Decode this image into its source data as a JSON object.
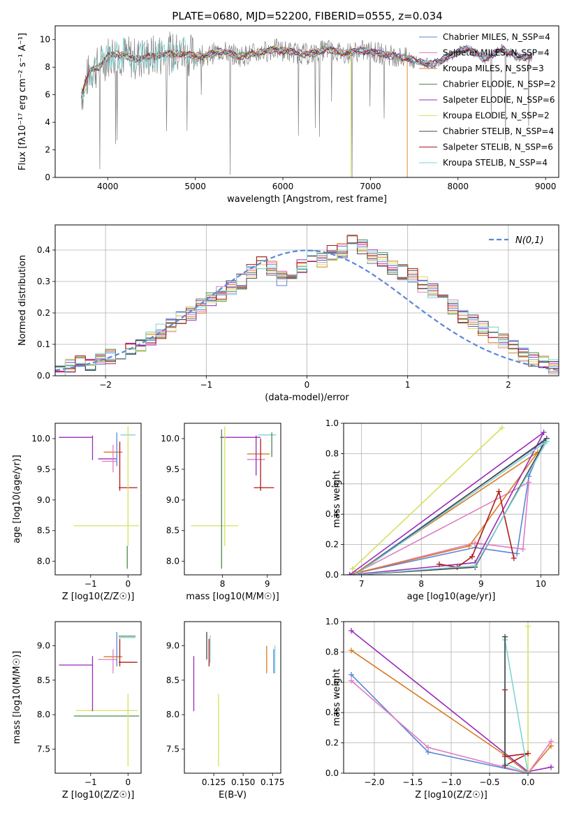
{
  "figure_title": "PLATE=0680, MJD=52200, FIBERID=0555, z=0.034",
  "series_colors": {
    "Chabrier MILES": "#5b86d8",
    "Salpeter MILES": "#e07cc0",
    "Kroupa MILES": "#d97a22",
    "Chabrier ELODIE": "#4a8a4a",
    "Salpeter ELODIE": "#9a2ab8",
    "Kroupa ELODIE": "#d8e060",
    "Chabrier STELIB": "#444444",
    "Salpeter STELIB": "#b01818",
    "Kroupa STELIB": "#7fd4d4"
  },
  "chart_data": [
    {
      "type": "line",
      "title": "PLATE=0680, MJD=52200, FIBERID=0555, z=0.034",
      "xlabel": "wavelength [Angstrom, rest frame]",
      "ylabel": "Flux [fλ10⁻¹⁷ erg cm⁻² s⁻¹ A⁻¹]",
      "xlim": [
        3400,
        9150
      ],
      "ylim": [
        0,
        11
      ],
      "xticks": [
        4000,
        5000,
        6000,
        7000,
        8000,
        9000
      ],
      "yticks": [
        0,
        2,
        4,
        6,
        8,
        10
      ],
      "legend_position": "right",
      "legend": [
        "Chabrier MILES, N_SSP=4",
        "Salpeter MILES, N_SSP=4",
        "Kroupa MILES, N_SSP=3",
        "Chabrier ELODIE, N_SSP=2",
        "Salpeter ELODIE, N_SSP=6",
        "Kroupa ELODIE, N_SSP=2",
        "Chabrier STELIB, N_SSP=4",
        "Salpeter STELIB, N_SSP=6",
        "Kroupa STELIB, N_SSP=4"
      ],
      "continuum": {
        "x": [
          3700,
          3800,
          3900,
          4000,
          4100,
          4300,
          4500,
          4700,
          4900,
          5100,
          5300,
          5500,
          5700,
          5900,
          6100,
          6300,
          6500,
          6700,
          6900,
          7100,
          7300,
          7500,
          7700,
          7900,
          8100,
          8300,
          8500,
          8700,
          8850
        ],
        "y": [
          6.0,
          7.8,
          8.0,
          8.8,
          9.0,
          8.6,
          8.8,
          9.0,
          8.9,
          8.8,
          9.2,
          8.8,
          9.0,
          9.3,
          9.1,
          8.9,
          9.3,
          9.0,
          9.2,
          9.0,
          8.8,
          8.5,
          8.2,
          8.8,
          9.4,
          8.6,
          9.3,
          8.7,
          8.8
        ]
      },
      "model_drop_x": [
        3910,
        6780,
        7420
      ]
    },
    {
      "type": "histogram",
      "xlabel": "(data-model)/error",
      "ylabel": "Normed distribution",
      "xlim": [
        -2.5,
        2.5
      ],
      "ylim": [
        0,
        0.48
      ],
      "xticks": [
        -2,
        -1,
        0,
        1,
        2
      ],
      "yticks": [
        0.0,
        0.1,
        0.2,
        0.3,
        0.4
      ],
      "grid": true,
      "legend_position": "top-right",
      "reference_curve": "N(0,1)",
      "bin_edges_start": -2.5,
      "bin_width": 0.1,
      "bin_values": [
        0.02,
        0.03,
        0.04,
        0.04,
        0.05,
        0.06,
        0.07,
        0.08,
        0.1,
        0.12,
        0.14,
        0.16,
        0.18,
        0.2,
        0.22,
        0.24,
        0.26,
        0.28,
        0.3,
        0.33,
        0.36,
        0.34,
        0.31,
        0.33,
        0.35,
        0.38,
        0.37,
        0.39,
        0.4,
        0.43,
        0.41,
        0.38,
        0.37,
        0.34,
        0.33,
        0.32,
        0.29,
        0.27,
        0.24,
        0.22,
        0.19,
        0.17,
        0.15,
        0.13,
        0.11,
        0.09,
        0.07,
        0.05,
        0.04,
        0.03
      ]
    },
    {
      "type": "scatter",
      "name": "Z vs age",
      "xlabel": "Z [log10(Z/Z☉)]",
      "ylabel": "age [log10(age/yr)]",
      "xlim": [
        -1.95,
        0.35
      ],
      "ylim": [
        7.78,
        10.25
      ],
      "xticks": [
        -1,
        0
      ],
      "yticks": [
        8.0,
        8.5,
        9.0,
        9.5,
        10.0
      ],
      "hlines": [
        {
          "y": 10.02,
          "x1": -1.85,
          "x2": -0.95,
          "color": "#9a2ab8"
        },
        {
          "y": 10.06,
          "x1": -0.2,
          "x2": 0.2,
          "color": "#7fd4d4"
        },
        {
          "y": 9.78,
          "x1": -0.65,
          "x2": -0.15,
          "color": "#d97a22"
        },
        {
          "y": 9.67,
          "x1": -0.8,
          "x2": -0.3,
          "color": "#9a2ab8"
        },
        {
          "y": 9.63,
          "x1": -0.7,
          "x2": -0.3,
          "color": "#e07cc0"
        },
        {
          "y": 9.2,
          "x1": -0.25,
          "x2": 0.25,
          "color": "#b01818"
        },
        {
          "y": 8.58,
          "x1": -1.45,
          "x2": 0.3,
          "color": "#d8e060"
        }
      ],
      "vlines": [
        {
          "x": -0.95,
          "y1": 9.65,
          "y2": 10.05,
          "color": "#9a2ab8"
        },
        {
          "x": -0.4,
          "y1": 9.45,
          "y2": 9.9,
          "color": "#e07cc0"
        },
        {
          "x": -0.3,
          "y1": 9.55,
          "y2": 10.1,
          "color": "#5b86d8"
        },
        {
          "x": -0.22,
          "y1": 9.15,
          "y2": 9.95,
          "color": "#b01818"
        },
        {
          "x": 0.0,
          "y1": 8.25,
          "y2": 10.2,
          "color": "#d8e060"
        },
        {
          "x": -0.02,
          "y1": 7.88,
          "y2": 8.25,
          "color": "#4a8a4a"
        }
      ]
    },
    {
      "type": "scatter",
      "name": "mass vs age",
      "xlabel": "mass [log10(M/M☉)]",
      "ylabel": "",
      "xlim": [
        7.15,
        9.3
      ],
      "ylim": [
        7.78,
        10.25
      ],
      "xticks": [
        8,
        9
      ],
      "yticks": [
        8.0,
        8.5,
        9.0,
        9.5,
        10.0
      ],
      "hlines": [
        {
          "y": 10.02,
          "x1": 7.95,
          "x2": 8.85,
          "color": "#9a2ab8"
        },
        {
          "y": 10.06,
          "x1": 8.8,
          "x2": 9.2,
          "color": "#7fd4d4"
        },
        {
          "y": 9.75,
          "x1": 8.55,
          "x2": 9.05,
          "color": "#d97a22"
        },
        {
          "y": 9.66,
          "x1": 8.55,
          "x2": 8.95,
          "color": "#e07cc0"
        },
        {
          "y": 9.2,
          "x1": 8.7,
          "x2": 9.15,
          "color": "#b01818"
        },
        {
          "y": 8.58,
          "x1": 7.3,
          "x2": 8.35,
          "color": "#d8e060"
        }
      ],
      "vlines": [
        {
          "x": 7.98,
          "y1": 7.88,
          "y2": 10.15,
          "color": "#4a8a4a"
        },
        {
          "x": 8.05,
          "y1": 8.25,
          "y2": 10.2,
          "color": "#d8e060"
        },
        {
          "x": 8.75,
          "y1": 9.4,
          "y2": 10.05,
          "color": "#9a2ab8"
        },
        {
          "x": 8.85,
          "y1": 9.15,
          "y2": 10.0,
          "color": "#b01818"
        },
        {
          "x": 9.1,
          "y1": 9.7,
          "y2": 10.1,
          "color": "#4a8a4a"
        }
      ]
    },
    {
      "type": "line",
      "name": "age vs mass weight",
      "xlabel": "age [log10(age/yr)]",
      "ylabel": "mass weight",
      "xlim": [
        6.7,
        10.3
      ],
      "ylim": [
        0.0,
        1.0
      ],
      "xticks": [
        7,
        8,
        9,
        10
      ],
      "yticks": [
        0.0,
        0.2,
        0.4,
        0.6,
        0.8,
        1.0
      ],
      "grid": true,
      "series": [
        {
          "key": "Kroupa ELODIE",
          "x": [
            6.85,
            9.35,
            6.85
          ],
          "y": [
            0.04,
            0.97,
            0.04
          ]
        },
        {
          "key": "Chabrier MILES",
          "x": [
            6.9,
            8.9,
            9.6,
            9.8,
            10.05,
            6.9
          ],
          "y": [
            0.01,
            0.18,
            0.14,
            0.65,
            0.88,
            0.01
          ]
        },
        {
          "key": "Salpeter MILES",
          "x": [
            6.9,
            8.9,
            9.7,
            9.8,
            6.9
          ],
          "y": [
            0.01,
            0.21,
            0.17,
            0.61,
            0.01
          ]
        },
        {
          "key": "Kroupa MILES",
          "x": [
            6.9,
            8.8,
            9.95,
            6.9
          ],
          "y": [
            0.01,
            0.19,
            0.81,
            0.01
          ]
        },
        {
          "key": "Salpeter ELODIE",
          "x": [
            6.8,
            8.9,
            10.05,
            6.8
          ],
          "y": [
            0.0,
            0.08,
            0.94,
            0.0
          ]
        },
        {
          "key": "Salpeter STELIB",
          "x": [
            8.3,
            8.6,
            8.85,
            9.3,
            9.55
          ],
          "y": [
            0.07,
            0.05,
            0.12,
            0.55,
            0.11
          ]
        },
        {
          "key": "Chabrier STELIB",
          "x": [
            6.9,
            8.9,
            10.1,
            6.9
          ],
          "y": [
            0.0,
            0.05,
            0.9,
            0.0
          ]
        },
        {
          "key": "Kroupa STELIB",
          "x": [
            6.9,
            8.9,
            10.1,
            6.9
          ],
          "y": [
            0.0,
            0.06,
            0.88,
            0.0
          ]
        }
      ]
    },
    {
      "type": "scatter",
      "name": "Z vs mass",
      "xlabel": "Z [log10(Z/Z☉)]",
      "ylabel": "mass [log10(M/M☉)]",
      "xlim": [
        -1.95,
        0.35
      ],
      "ylim": [
        7.15,
        9.35
      ],
      "xticks": [
        -1,
        0
      ],
      "yticks": [
        7.5,
        8.0,
        8.5,
        9.0
      ],
      "hlines": [
        {
          "y": 8.72,
          "x1": -1.85,
          "x2": -0.95,
          "color": "#9a2ab8"
        },
        {
          "y": 9.12,
          "x1": -0.25,
          "x2": 0.2,
          "color": "#7fd4d4"
        },
        {
          "y": 9.14,
          "x1": -0.25,
          "x2": 0.2,
          "color": "#4a8a4a"
        },
        {
          "y": 8.84,
          "x1": -0.65,
          "x2": -0.15,
          "color": "#d97a22"
        },
        {
          "y": 8.8,
          "x1": -0.8,
          "x2": -0.3,
          "color": "#e07cc0"
        },
        {
          "y": 8.76,
          "x1": -0.25,
          "x2": 0.25,
          "color": "#b01818"
        },
        {
          "y": 8.06,
          "x1": -1.4,
          "x2": 0.25,
          "color": "#d8e060"
        },
        {
          "y": 7.98,
          "x1": -1.45,
          "x2": 0.3,
          "color": "#4a8a4a"
        }
      ],
      "vlines": [
        {
          "x": -0.95,
          "y1": 8.05,
          "y2": 8.85,
          "color": "#9a2ab8"
        },
        {
          "x": -0.4,
          "y1": 8.6,
          "y2": 8.95,
          "color": "#e07cc0"
        },
        {
          "x": -0.3,
          "y1": 8.7,
          "y2": 9.2,
          "color": "#5b86d8"
        },
        {
          "x": -0.22,
          "y1": 8.7,
          "y2": 9.1,
          "color": "#b01818"
        },
        {
          "x": 0.0,
          "y1": 7.25,
          "y2": 8.3,
          "color": "#d8e060"
        }
      ]
    },
    {
      "type": "scatter",
      "name": "E(B-V) vs mass",
      "xlabel": "E(B-V)",
      "ylabel": "",
      "xlim": [
        0.1,
        0.182
      ],
      "ylim": [
        7.15,
        9.35
      ],
      "xticks": [
        0.125,
        0.15,
        0.175
      ],
      "xticklabels": [
        "0.125",
        "0.150",
        "0.175"
      ],
      "yticks": [
        7.5,
        8.0,
        8.5,
        9.0
      ],
      "vlines": [
        {
          "x": 0.108,
          "y1": 8.05,
          "y2": 8.85,
          "color": "#9a2ab8"
        },
        {
          "x": 0.119,
          "y1": 8.8,
          "y2": 9.2,
          "color": "#444444"
        },
        {
          "x": 0.121,
          "y1": 8.7,
          "y2": 9.1,
          "color": "#b01818"
        },
        {
          "x": 0.122,
          "y1": 8.75,
          "y2": 9.15,
          "color": "#7fd4d4"
        },
        {
          "x": 0.129,
          "y1": 7.25,
          "y2": 8.3,
          "color": "#d8e060"
        },
        {
          "x": 0.17,
          "y1": 8.6,
          "y2": 9.0,
          "color": "#d97a22"
        },
        {
          "x": 0.176,
          "y1": 8.6,
          "y2": 8.95,
          "color": "#5b86d8"
        },
        {
          "x": 0.177,
          "y1": 8.6,
          "y2": 9.0,
          "color": "#7fd4d4"
        }
      ]
    },
    {
      "type": "line",
      "name": "Z vs mass weight",
      "xlabel": "Z [log10(Z/Z☉)]",
      "ylabel": "mass weight",
      "xlim": [
        -2.4,
        0.4
      ],
      "ylim": [
        0.0,
        1.0
      ],
      "xticks": [
        -2.0,
        -1.5,
        -1.0,
        -0.5,
        0.0
      ],
      "xticklabels": [
        "−2.0",
        "−1.5",
        "−1.0",
        "−0.5",
        "0.0"
      ],
      "yticks": [
        0.0,
        0.2,
        0.4,
        0.6,
        0.8,
        1.0
      ],
      "grid": true,
      "series": [
        {
          "key": "Salpeter ELODIE",
          "x": [
            -2.3,
            0.0,
            0.3
          ],
          "y": [
            0.94,
            0.01,
            0.04
          ]
        },
        {
          "key": "Kroupa MILES",
          "x": [
            -2.3,
            -0.3,
            0.0,
            0.3
          ],
          "y": [
            0.81,
            0.12,
            0.0,
            0.18
          ]
        },
        {
          "key": "Chabrier MILES",
          "x": [
            -2.3,
            -1.3,
            0.0
          ],
          "y": [
            0.65,
            0.14,
            0.0
          ]
        },
        {
          "key": "Salpeter MILES",
          "x": [
            -2.3,
            -1.3,
            0.0,
            0.3
          ],
          "y": [
            0.61,
            0.17,
            0.0,
            0.21
          ]
        },
        {
          "key": "Kroupa ELODIE",
          "x": [
            0.0,
            0.0
          ],
          "y": [
            0.0,
            0.97
          ]
        },
        {
          "key": "Salpeter STELIB",
          "x": [
            -0.3,
            -0.3,
            0.0,
            -0.3
          ],
          "y": [
            0.55,
            0.11,
            0.13,
            0.05
          ]
        },
        {
          "key": "Kroupa STELIB",
          "x": [
            -0.3,
            -0.3,
            0.0,
            -0.3
          ],
          "y": [
            0.88,
            0.06,
            0.0,
            0.88
          ]
        },
        {
          "key": "Chabrier STELIB",
          "x": [
            -0.3,
            -0.3
          ],
          "y": [
            0.9,
            0.05
          ]
        }
      ]
    }
  ]
}
